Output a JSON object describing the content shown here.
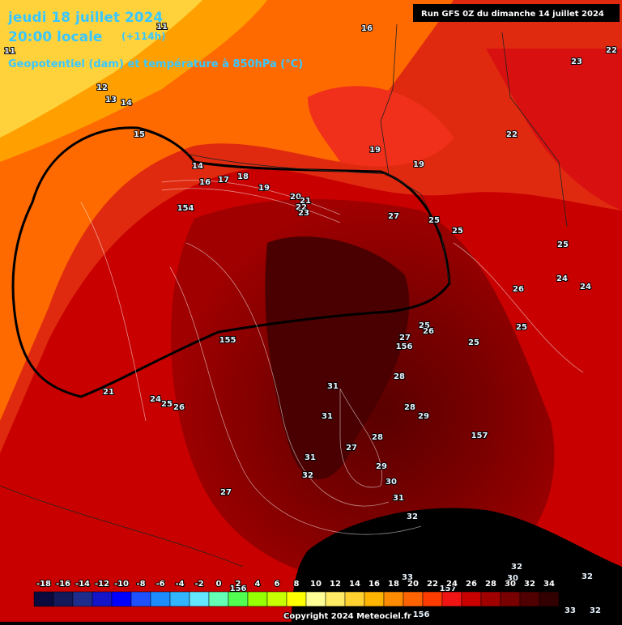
{
  "header": {
    "title": "jeudi 18 juillet 2024",
    "time": "20:00 locale",
    "lead": "(+114h)",
    "subtitle": "Geopotentiel (dam) et température à 850hPa (°C)",
    "run": "Run GFS 0Z du dimanche 14 juillet 2024"
  },
  "map_labels": [
    11,
    16,
    23,
    22,
    11,
    12,
    13,
    14,
    15,
    22,
    19,
    19,
    14,
    16,
    17,
    18,
    19,
    20,
    21,
    22,
    23,
    154,
    27,
    25,
    25,
    25,
    24,
    24,
    26,
    25,
    25,
    155,
    27,
    25,
    26,
    156,
    28,
    21,
    24,
    25,
    26,
    31,
    31,
    28,
    29,
    28,
    157,
    27,
    31,
    32,
    29,
    30,
    31,
    27,
    32,
    33,
    157,
    32,
    30,
    32,
    33,
    32,
    156,
    156
  ],
  "colorbar": {
    "ticks": [
      -18,
      -16,
      -14,
      -12,
      -10,
      -8,
      -6,
      -4,
      -2,
      0,
      2,
      4,
      6,
      8,
      10,
      12,
      14,
      16,
      18,
      20,
      22,
      24,
      26,
      28,
      30,
      32,
      34
    ],
    "colors": [
      "#0a0a3c",
      "#14195a",
      "#1e2d8c",
      "#1414c8",
      "#0000ff",
      "#1e50ff",
      "#1e8cff",
      "#32b4ff",
      "#64e6ff",
      "#64ffb4",
      "#50ff50",
      "#96ff00",
      "#c8ff00",
      "#ffff00",
      "#ffff96",
      "#ffeb64",
      "#ffd232",
      "#ffb400",
      "#ff8c00",
      "#ff6400",
      "#ff3c00",
      "#f01414",
      "#c80000",
      "#a00000",
      "#780000",
      "#500000",
      "#320000"
    ]
  },
  "footer": {
    "copyright": "Copyright 2024 Meteociel.fr"
  }
}
